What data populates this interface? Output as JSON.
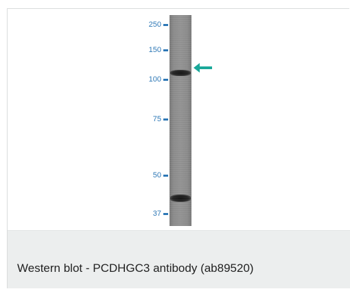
{
  "figure": {
    "markers": [
      {
        "label": "250",
        "name": "marker-250"
      },
      {
        "label": "150",
        "name": "marker-150"
      },
      {
        "label": "100",
        "name": "marker-100"
      },
      {
        "label": "75",
        "name": "marker-75"
      },
      {
        "label": "50",
        "name": "marker-50"
      },
      {
        "label": "37",
        "name": "marker-37"
      }
    ],
    "arrow_color": "#1aa89a",
    "marker_color": "#2e78b6",
    "arrow_icon": "left-arrow-icon"
  },
  "caption": {
    "text": "Western blot - PCDHGC3 antibody (ab89520)"
  }
}
